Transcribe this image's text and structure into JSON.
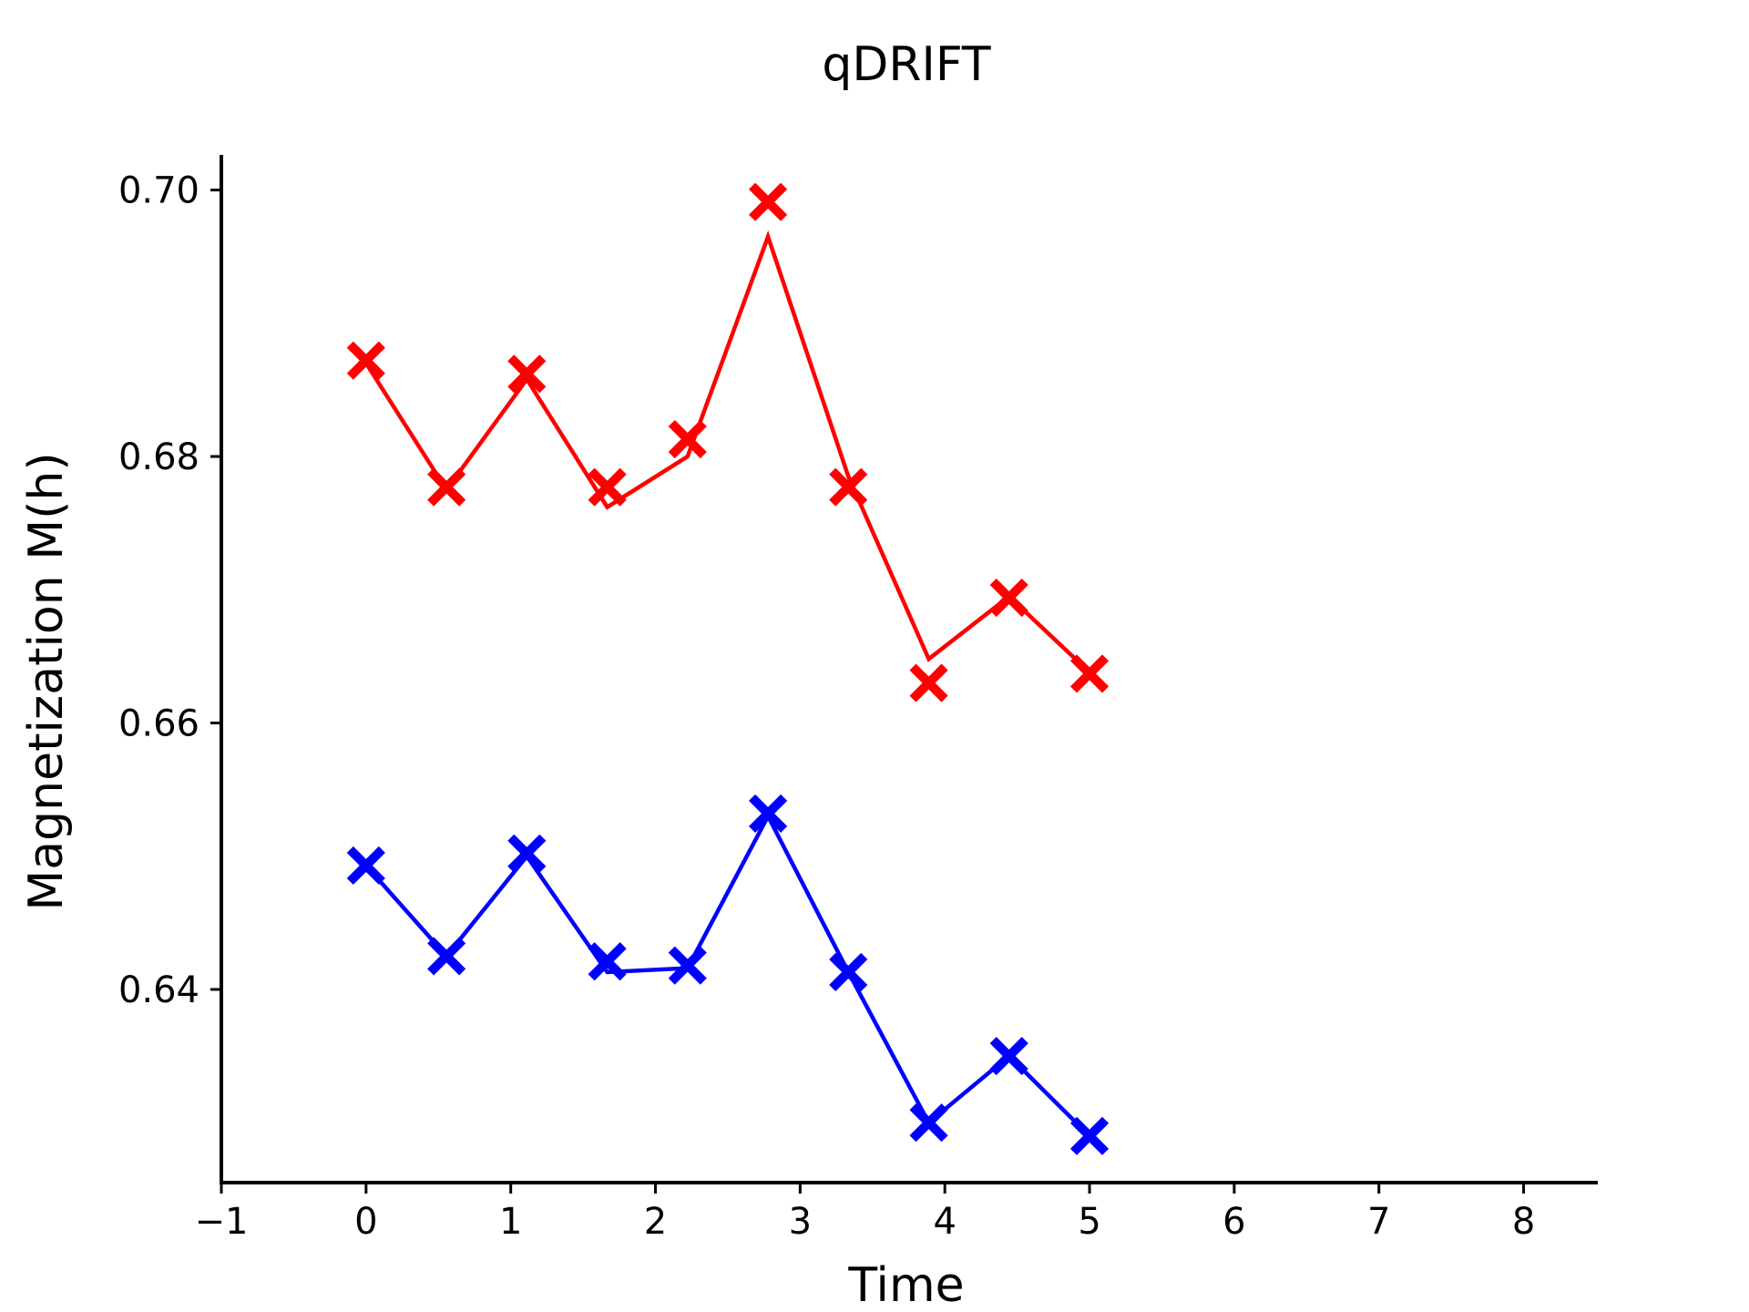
{
  "chart_data": {
    "type": "line",
    "title": "qDRIFT",
    "xlabel": "Time",
    "ylabel": "Magnetization M(h)",
    "xlim": [
      -1,
      8.5
    ],
    "ylim": [
      0.6255,
      0.7025
    ],
    "xticks": [
      -1,
      0,
      1,
      2,
      3,
      4,
      5,
      6,
      7,
      8
    ],
    "xtick_labels": [
      "−1",
      "0",
      "1",
      "2",
      "3",
      "4",
      "5",
      "6",
      "7",
      "8"
    ],
    "yticks": [
      0.64,
      0.66,
      0.68,
      0.7
    ],
    "ytick_labels": [
      "0.64",
      "0.66",
      "0.68",
      "0.70"
    ],
    "grid": false,
    "legend": false,
    "series": [
      {
        "color": "#ff0000",
        "x": [
          0,
          0.556,
          1.111,
          1.667,
          2.222,
          2.778,
          3.333,
          3.889,
          4.444,
          5.0
        ],
        "line_values": [
          0.687,
          0.6775,
          0.6858,
          0.6762,
          0.68,
          0.6965,
          0.6785,
          0.6648,
          0.6695,
          0.6638
        ],
        "marker_values": [
          0.6872,
          0.6777,
          0.6862,
          0.6777,
          0.6813,
          0.6991,
          0.6777,
          0.663,
          0.6694,
          0.6637
        ]
      },
      {
        "color": "#0000ff",
        "x": [
          0,
          0.556,
          1.111,
          1.667,
          2.222,
          2.778,
          3.333,
          3.889,
          4.444,
          5.0
        ],
        "line_values": [
          0.6493,
          0.6425,
          0.65,
          0.6413,
          0.6416,
          0.653,
          0.6413,
          0.63,
          0.635,
          0.629
        ],
        "marker_values": [
          0.6493,
          0.6425,
          0.6502,
          0.6421,
          0.6418,
          0.6532,
          0.6413,
          0.63,
          0.635,
          0.629
        ]
      }
    ]
  }
}
